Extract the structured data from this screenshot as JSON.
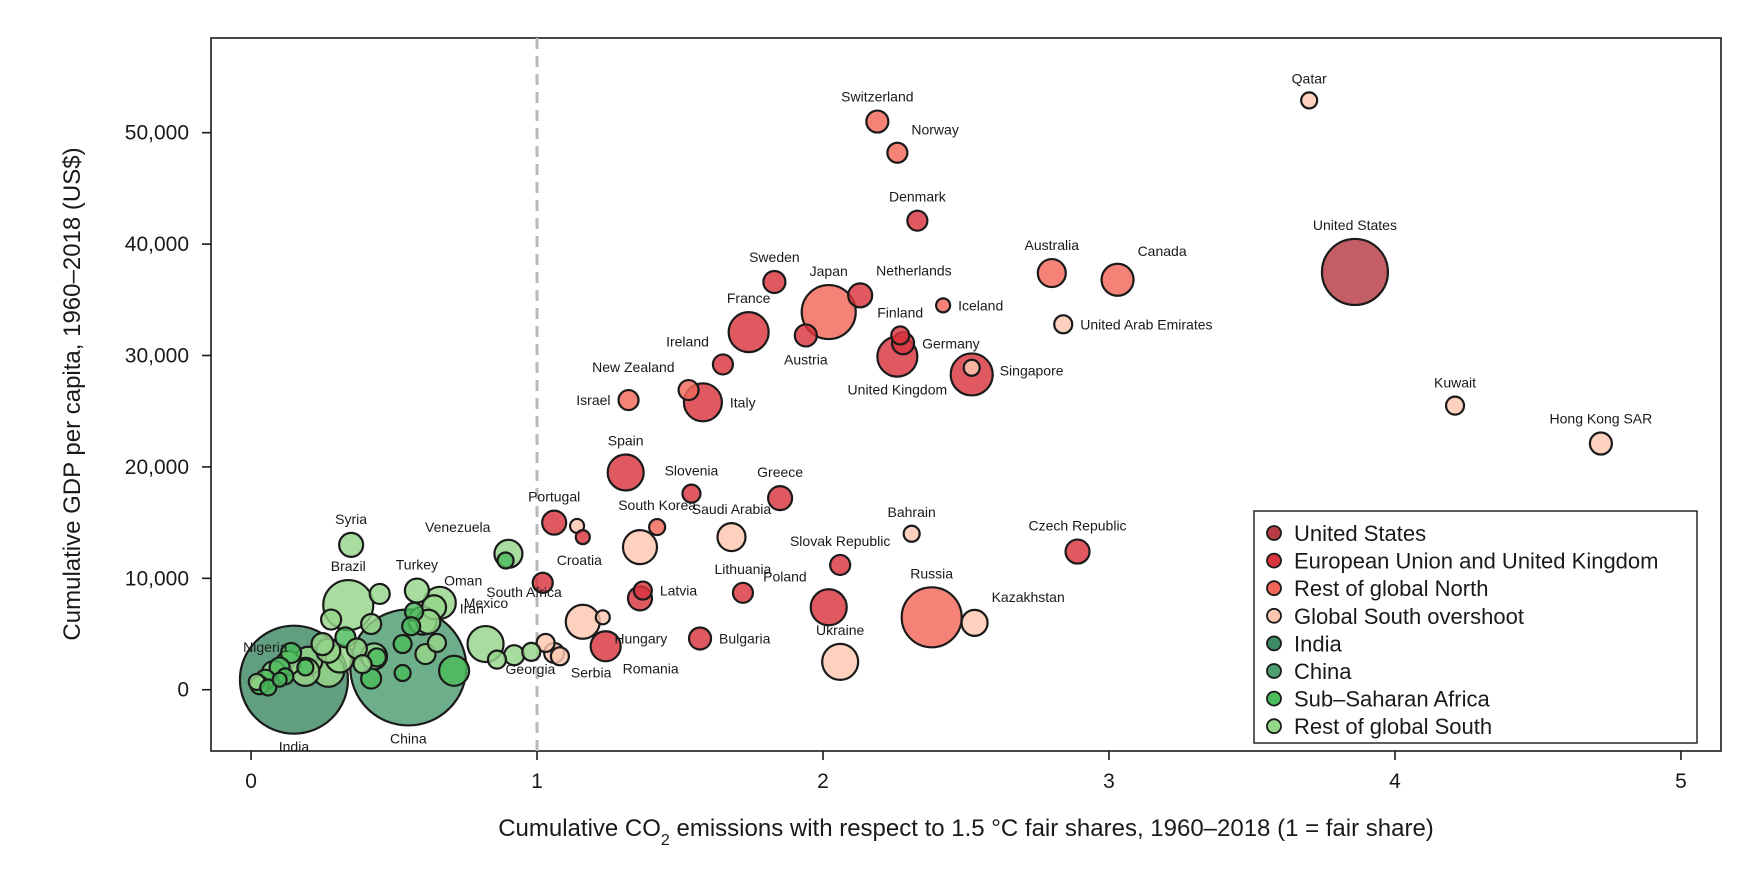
{
  "chart_data": {
    "type": "scatter",
    "xlabel_parts": {
      "pre": "Cumulative CO",
      "sub": "2",
      "post": " emissions with respect to 1.5 °C fair shares, 1960–2018 (1 = fair share)"
    },
    "ylabel": "Cumulative GDP per capita, 1960–2018 (US$)",
    "xlim": [
      -0.14,
      5.14
    ],
    "ylim": [
      -5500,
      58500
    ],
    "x_ticks": [
      0,
      1,
      2,
      3,
      4,
      5
    ],
    "y_ticks": [
      0,
      10000,
      20000,
      30000,
      40000,
      50000
    ],
    "x_tick_labels": [
      "0",
      "1",
      "2",
      "3",
      "4",
      "5"
    ],
    "y_tick_labels": [
      "0",
      "10,000",
      "20,000",
      "30,000",
      "40,000",
      "50,000"
    ],
    "reference_line_x": 1,
    "legend_position": "bottom-right",
    "groups": [
      {
        "name": "United States",
        "color": "#b73a44"
      },
      {
        "name": "European Union and United Kingdom",
        "color": "#d9353e"
      },
      {
        "name": "Rest of global North",
        "color": "#f26659"
      },
      {
        "name": "Global South overshoot",
        "color": "#fcc7b0"
      },
      {
        "name": "India",
        "color": "#3e8a64"
      },
      {
        "name": "China",
        "color": "#4e9e72"
      },
      {
        "name": "Sub–Saharan Africa",
        "color": "#4bbb5c"
      },
      {
        "name": "Rest of global South",
        "color": "#96d68a"
      }
    ],
    "points": [
      {
        "label": "United States",
        "x": 3.86,
        "y": 37500,
        "r": 33,
        "g": 0,
        "lp": "above"
      },
      {
        "label": "Qatar",
        "x": 3.7,
        "y": 52900,
        "r": 8,
        "g": 3,
        "lp": "above"
      },
      {
        "label": "Switzerland",
        "x": 2.19,
        "y": 51000,
        "r": 11,
        "g": 2,
        "lp": "above"
      },
      {
        "label": "Norway",
        "x": 2.26,
        "y": 48200,
        "r": 10,
        "g": 2,
        "lp": "above-right"
      },
      {
        "label": "Denmark",
        "x": 2.33,
        "y": 42100,
        "r": 10,
        "g": 1,
        "lp": "above"
      },
      {
        "label": "Australia",
        "x": 2.8,
        "y": 37400,
        "r": 14,
        "g": 2,
        "lp": "above"
      },
      {
        "label": "Canada",
        "x": 3.03,
        "y": 36800,
        "r": 16,
        "g": 2,
        "lp": "above-right"
      },
      {
        "label": "Sweden",
        "x": 1.83,
        "y": 36600,
        "r": 11,
        "g": 1,
        "lp": "above"
      },
      {
        "label": "Japan",
        "x": 2.02,
        "y": 33900,
        "r": 27,
        "g": 2,
        "lp": "above"
      },
      {
        "label": "Netherlands",
        "x": 2.13,
        "y": 35400,
        "r": 12,
        "g": 1,
        "lp": "above-right"
      },
      {
        "label": "Iceland",
        "x": 2.42,
        "y": 34500,
        "r": 7,
        "g": 2,
        "lp": "right"
      },
      {
        "label": "United Arab Emirates",
        "x": 2.84,
        "y": 32800,
        "r": 9,
        "g": 3,
        "lp": "right"
      },
      {
        "label": "France",
        "x": 1.74,
        "y": 32100,
        "r": 20,
        "g": 1,
        "lp": "above"
      },
      {
        "label": "Finland",
        "x": 2.27,
        "y": 31800,
        "r": 9,
        "g": 1,
        "lp": "above"
      },
      {
        "label": "Germany",
        "x": 2.28,
        "y": 31100,
        "r": 11,
        "g": 1,
        "lp": "right"
      },
      {
        "label": "Austria",
        "x": 1.94,
        "y": 31800,
        "r": 11,
        "g": 1,
        "lp": "below"
      },
      {
        "label": "Ireland",
        "x": 1.65,
        "y": 29200,
        "r": 10,
        "g": 1,
        "lp": "above-left"
      },
      {
        "label": "United Kingdom",
        "x": 2.26,
        "y": 29900,
        "r": 20,
        "g": 1,
        "lp": "below"
      },
      {
        "label": "Singapore",
        "x": 2.52,
        "y": 28900,
        "r": 8,
        "g": 3,
        "lp": "none"
      },
      {
        "label": "",
        "x": 2.52,
        "y": 28300,
        "r": 21,
        "g": 1,
        "lp": "none",
        "dx": 1
      },
      {
        "label": "Singapore",
        "x": 2.52,
        "y": 28300,
        "r": 1,
        "g": -1,
        "lp": "right-far"
      },
      {
        "label": "New Zealand",
        "x": 1.53,
        "y": 26900,
        "r": 10,
        "g": 2,
        "lp": "above-left"
      },
      {
        "label": "Italy",
        "x": 1.58,
        "y": 25800,
        "r": 19,
        "g": 1,
        "lp": "right"
      },
      {
        "label": "Israel",
        "x": 1.32,
        "y": 26000,
        "r": 10,
        "g": 2,
        "lp": "left"
      },
      {
        "label": "Kuwait",
        "x": 4.21,
        "y": 25500,
        "r": 9,
        "g": 3,
        "lp": "above"
      },
      {
        "label": "Hong Kong SAR",
        "x": 4.72,
        "y": 22100,
        "r": 11,
        "g": 3,
        "lp": "above"
      },
      {
        "label": "Spain",
        "x": 1.31,
        "y": 19500,
        "r": 18,
        "g": 1,
        "lp": "above"
      },
      {
        "label": "Slovenia",
        "x": 1.54,
        "y": 17600,
        "r": 9,
        "g": 1,
        "lp": "above"
      },
      {
        "label": "Greece",
        "x": 1.85,
        "y": 17200,
        "r": 12,
        "g": 1,
        "lp": "above"
      },
      {
        "label": "Portugal",
        "x": 1.06,
        "y": 15000,
        "r": 12,
        "g": 1,
        "lp": "above"
      },
      {
        "label": "",
        "x": 1.14,
        "y": 14700,
        "r": 7,
        "g": 3,
        "lp": "none"
      },
      {
        "label": "",
        "x": 1.16,
        "y": 13700,
        "r": 7,
        "g": 1,
        "lp": "none"
      },
      {
        "label": "South Korea",
        "x": 1.42,
        "y": 14600,
        "r": 8,
        "g": 2,
        "lp": "above"
      },
      {
        "label": "",
        "x": 1.36,
        "y": 12800,
        "r": 17,
        "g": 3,
        "lp": "none"
      },
      {
        "label": "Saudi Arabia",
        "x": 1.68,
        "y": 13700,
        "r": 14,
        "g": 3,
        "lp": "above"
      },
      {
        "label": "Bahrain",
        "x": 2.31,
        "y": 14000,
        "r": 8,
        "g": 3,
        "lp": "above"
      },
      {
        "label": "Czech Republic",
        "x": 2.89,
        "y": 12400,
        "r": 12,
        "g": 1,
        "lp": "above"
      },
      {
        "label": "Slovak Republic",
        "x": 2.06,
        "y": 11200,
        "r": 10,
        "g": 1,
        "lp": "above"
      },
      {
        "label": "Croatia",
        "x": 1.02,
        "y": 9600,
        "r": 10,
        "g": 1,
        "lp": "above-right"
      },
      {
        "label": "Latvia",
        "x": 1.37,
        "y": 8900,
        "r": 9,
        "g": 1,
        "lp": "right"
      },
      {
        "label": "",
        "x": 1.36,
        "y": 8200,
        "r": 12,
        "g": 1,
        "lp": "none"
      },
      {
        "label": "Lithuania",
        "x": 1.72,
        "y": 8700,
        "r": 10,
        "g": 1,
        "lp": "above"
      },
      {
        "label": "Poland",
        "x": 2.02,
        "y": 7400,
        "r": 18,
        "g": 1,
        "lp": "above-left"
      },
      {
        "label": "Russia",
        "x": 2.38,
        "y": 6500,
        "r": 30,
        "g": 2,
        "lp": "above"
      },
      {
        "label": "Kazakhstan",
        "x": 2.53,
        "y": 6000,
        "r": 13,
        "g": 3,
        "lp": "above-right"
      },
      {
        "label": "South Africa",
        "x": 1.16,
        "y": 6100,
        "r": 17,
        "g": 3,
        "lp": "above-left"
      },
      {
        "label": "",
        "x": 1.23,
        "y": 6500,
        "r": 7,
        "g": 3,
        "lp": "none"
      },
      {
        "label": "Hungary",
        "x": 1.37,
        "y": 6200,
        "r": 1,
        "g": -1,
        "lp": "below-right-far"
      },
      {
        "label": "Romania",
        "x": 1.24,
        "y": 3900,
        "r": 15,
        "g": 1,
        "lp": "below-right"
      },
      {
        "label": "Bulgaria",
        "x": 1.57,
        "y": 4600,
        "r": 11,
        "g": 1,
        "lp": "right"
      },
      {
        "label": "Ukraine",
        "x": 2.06,
        "y": 2500,
        "r": 18,
        "g": 3,
        "lp": "above"
      },
      {
        "label": "Serbia",
        "x": 1.08,
        "y": 3000,
        "r": 9,
        "g": 3,
        "lp": "below-right"
      },
      {
        "label": "",
        "x": 1.03,
        "y": 4200,
        "r": 9,
        "g": 3,
        "lp": "none"
      },
      {
        "label": "",
        "x": 1.06,
        "y": 3300,
        "r": 10,
        "g": 3,
        "lp": "none"
      },
      {
        "label": "Syria",
        "x": 0.35,
        "y": 13000,
        "r": 12,
        "g": 7,
        "lp": "above"
      },
      {
        "label": "Venezuela",
        "x": 0.9,
        "y": 12200,
        "r": 14,
        "g": 7,
        "lp": "above-left"
      },
      {
        "label": "",
        "x": 0.89,
        "y": 11600,
        "r": 8,
        "g": 6,
        "lp": "none"
      },
      {
        "label": "Brazil",
        "x": 0.34,
        "y": 7600,
        "r": 25,
        "g": 7,
        "lp": "above"
      },
      {
        "label": "Turkey",
        "x": 0.58,
        "y": 8900,
        "r": 12,
        "g": 7,
        "lp": "above"
      },
      {
        "label": "Oman",
        "x": 0.84,
        "y": 9800,
        "r": 1,
        "g": -1,
        "lp": "left"
      },
      {
        "label": "Mexico",
        "x": 0.66,
        "y": 7800,
        "r": 16,
        "g": 7,
        "lp": "right"
      },
      {
        "label": "Iran",
        "x": 0.6,
        "y": 6200,
        "r": 14,
        "g": 7,
        "lp": "none"
      },
      {
        "label": "Iran",
        "x": 0.8,
        "y": 6500,
        "r": 1,
        "g": -1,
        "lp": "none"
      },
      {
        "label": "Georgia",
        "x": 0.82,
        "y": 4100,
        "r": 18,
        "g": 7,
        "lp": "below-right"
      },
      {
        "label": "",
        "x": 0.92,
        "y": 3100,
        "r": 10,
        "g": 7,
        "lp": "none"
      },
      {
        "label": "",
        "x": 0.98,
        "y": 3400,
        "r": 9,
        "g": 7,
        "lp": "none"
      },
      {
        "label": "",
        "x": 0.86,
        "y": 2700,
        "r": 9,
        "g": 7,
        "lp": "none"
      },
      {
        "label": "",
        "x": 0.71,
        "y": 1700,
        "r": 15,
        "g": 6,
        "lp": "none"
      },
      {
        "label": "China",
        "x": 0.55,
        "y": 2000,
        "r": 58,
        "g": 5,
        "lp": "below"
      },
      {
        "label": "Nigeria",
        "x": 0.05,
        "y": 2500,
        "r": 1,
        "g": -1,
        "lp": "above"
      },
      {
        "label": "India",
        "x": 0.15,
        "y": 900,
        "r": 54,
        "g": 4,
        "lp": "below"
      },
      {
        "label": "",
        "x": 0.45,
        "y": 8600,
        "r": 10,
        "g": 7,
        "lp": "none"
      },
      {
        "label": "",
        "x": 0.57,
        "y": 7000,
        "r": 9,
        "g": 6,
        "lp": "none"
      },
      {
        "label": "",
        "x": 0.56,
        "y": 5700,
        "r": 9,
        "g": 6,
        "lp": "none"
      },
      {
        "label": "",
        "x": 0.64,
        "y": 7400,
        "r": 12,
        "g": 7,
        "lp": "none"
      },
      {
        "label": "",
        "x": 0.62,
        "y": 6100,
        "r": 12,
        "g": 7,
        "lp": "none"
      },
      {
        "label": "",
        "x": 0.53,
        "y": 4100,
        "r": 9,
        "g": 6,
        "lp": "none"
      },
      {
        "label": "",
        "x": 0.61,
        "y": 3200,
        "r": 10,
        "g": 7,
        "lp": "none"
      },
      {
        "label": "",
        "x": 0.65,
        "y": 4200,
        "r": 9,
        "g": 7,
        "lp": "none"
      },
      {
        "label": "",
        "x": 0.42,
        "y": 5900,
        "r": 10,
        "g": 7,
        "lp": "none"
      },
      {
        "label": "",
        "x": 0.28,
        "y": 6300,
        "r": 10,
        "g": 7,
        "lp": "none"
      },
      {
        "label": "",
        "x": 0.33,
        "y": 4700,
        "r": 10,
        "g": 6,
        "lp": "none"
      },
      {
        "label": "",
        "x": 0.37,
        "y": 3700,
        "r": 10,
        "g": 7,
        "lp": "none"
      },
      {
        "label": "",
        "x": 0.43,
        "y": 3000,
        "r": 13,
        "g": 7,
        "lp": "none"
      },
      {
        "label": "",
        "x": 0.44,
        "y": 2900,
        "r": 9,
        "g": 6,
        "lp": "none"
      },
      {
        "label": "",
        "x": 0.39,
        "y": 2300,
        "r": 9,
        "g": 7,
        "lp": "none"
      },
      {
        "label": "",
        "x": 0.42,
        "y": 1000,
        "r": 10,
        "g": 6,
        "lp": "none"
      },
      {
        "label": "",
        "x": 0.53,
        "y": 1500,
        "r": 8,
        "g": 6,
        "lp": "none"
      },
      {
        "label": "",
        "x": 0.25,
        "y": 4100,
        "r": 11,
        "g": 7,
        "lp": "none"
      },
      {
        "label": "",
        "x": 0.27,
        "y": 3500,
        "r": 12,
        "g": 7,
        "lp": "none"
      },
      {
        "label": "",
        "x": 0.31,
        "y": 2800,
        "r": 14,
        "g": 7,
        "lp": "none"
      },
      {
        "label": "",
        "x": 0.27,
        "y": 1700,
        "r": 16,
        "g": 7,
        "lp": "none"
      },
      {
        "label": "",
        "x": 0.2,
        "y": 2600,
        "r": 14,
        "g": 7,
        "lp": "none"
      },
      {
        "label": "",
        "x": 0.19,
        "y": 1600,
        "r": 14,
        "g": 7,
        "lp": "none"
      },
      {
        "label": "",
        "x": 0.14,
        "y": 3300,
        "r": 10,
        "g": 6,
        "lp": "none"
      },
      {
        "label": "",
        "x": 0.13,
        "y": 2400,
        "r": 12,
        "g": 7,
        "lp": "none"
      },
      {
        "label": "",
        "x": 0.1,
        "y": 2000,
        "r": 10,
        "g": 6,
        "lp": "none"
      },
      {
        "label": "",
        "x": 0.08,
        "y": 1500,
        "r": 12,
        "g": 7,
        "lp": "none"
      },
      {
        "label": "",
        "x": 0.05,
        "y": 900,
        "r": 10,
        "g": 6,
        "lp": "none"
      },
      {
        "label": "",
        "x": 0.03,
        "y": 400,
        "r": 9,
        "g": 6,
        "lp": "none"
      },
      {
        "label": "",
        "x": 0.02,
        "y": 700,
        "r": 8,
        "g": 7,
        "lp": "none"
      },
      {
        "label": "",
        "x": 0.06,
        "y": 200,
        "r": 8,
        "g": 6,
        "lp": "none"
      },
      {
        "label": "",
        "x": 0.1,
        "y": 900,
        "r": 7,
        "g": 6,
        "lp": "none"
      },
      {
        "label": "",
        "x": 0.19,
        "y": 2000,
        "r": 8,
        "g": 6,
        "lp": "none"
      },
      {
        "label": "",
        "x": 0.12,
        "y": 1200,
        "r": 8,
        "g": 6,
        "lp": "none"
      }
    ]
  }
}
